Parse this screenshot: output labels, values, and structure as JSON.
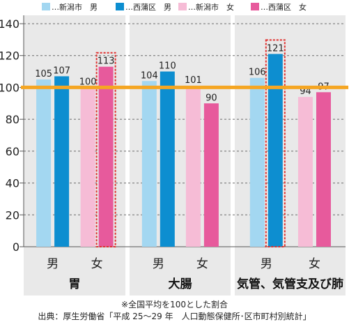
{
  "chart_data": {
    "type": "bar",
    "legend": [
      {
        "name": "…新潟市　男",
        "color": "#a3d7f1"
      },
      {
        "name": "…西蒲区　男",
        "color": "#0d8ed0"
      },
      {
        "name": "…新潟市　女",
        "color": "#f6bcd6"
      },
      {
        "name": "…西蒲区　女",
        "color": "#e75a9c"
      }
    ],
    "ylim": [
      0,
      140
    ],
    "yticks": [
      "0",
      "20",
      "40",
      "60",
      "80",
      "100",
      "120",
      "140"
    ],
    "reference_line": 100,
    "reference_color": "#f5a623",
    "panels": [
      {
        "label": "胃",
        "groups": [
          {
            "label": "男",
            "bars": [
              {
                "series": 0,
                "value": 105,
                "label": "105"
              },
              {
                "series": 1,
                "value": 107,
                "label": "107"
              }
            ]
          },
          {
            "label": "女",
            "bars": [
              {
                "series": 2,
                "value": 100,
                "label": "100"
              },
              {
                "series": 3,
                "value": 113,
                "label": "113",
                "highlight": true
              }
            ]
          }
        ]
      },
      {
        "label": "大腸",
        "groups": [
          {
            "label": "男",
            "bars": [
              {
                "series": 0,
                "value": 104,
                "label": "104"
              },
              {
                "series": 1,
                "value": 110,
                "label": "110"
              }
            ]
          },
          {
            "label": "女",
            "bars": [
              {
                "series": 2,
                "value": 101,
                "label": "101"
              },
              {
                "series": 3,
                "value": 90,
                "label": "90"
              }
            ]
          }
        ]
      },
      {
        "label": "気管、気管支及び肺",
        "groups": [
          {
            "label": "男",
            "bars": [
              {
                "series": 0,
                "value": 106,
                "label": "106"
              },
              {
                "series": 1,
                "value": 121,
                "label": "121",
                "highlight": true
              }
            ]
          },
          {
            "label": "女",
            "bars": [
              {
                "series": 2,
                "value": 94,
                "label": "94"
              },
              {
                "series": 3,
                "value": 97,
                "label": "97"
              }
            ]
          }
        ]
      }
    ],
    "highlight_color": "#e0302e",
    "notes": [
      "※全国平均を100とした割合",
      "出典：厚生労働省「平成 25〜29 年　人口動態保健所･区市町村別統計」"
    ]
  }
}
